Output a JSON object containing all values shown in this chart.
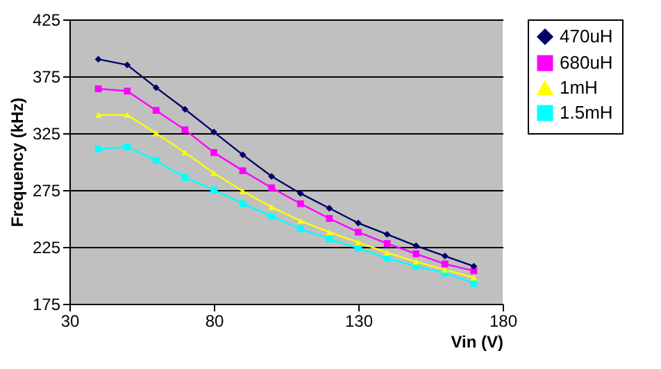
{
  "chart_data": {
    "type": "line",
    "xlabel": "Vin (V)",
    "ylabel": "Frequency (kHz)",
    "x": [
      40,
      50,
      60,
      70,
      80,
      90,
      100,
      110,
      120,
      130,
      140,
      150,
      160,
      170
    ],
    "series": [
      {
        "name": "470uH",
        "color": "#000066",
        "marker": "diamond",
        "values": [
          390,
          385,
          365,
          346,
          326,
          306,
          287,
          272,
          259,
          246,
          236,
          226,
          217,
          208
        ]
      },
      {
        "name": "680uH",
        "color": "#ff00ff",
        "marker": "square",
        "values": [
          364,
          362,
          345,
          328,
          308,
          292,
          277,
          263,
          250,
          238,
          228,
          219,
          210,
          204
        ]
      },
      {
        "name": "1mH",
        "color": "#ffff00",
        "marker": "triangle",
        "values": [
          341,
          341,
          325,
          308,
          290,
          274,
          260,
          248,
          238,
          229,
          220,
          212,
          205,
          198
        ]
      },
      {
        "name": "1.5mH",
        "color": "#00ffff",
        "marker": "square",
        "values": [
          311,
          313,
          301,
          286,
          275,
          263,
          252,
          241,
          232,
          224,
          215,
          208,
          202,
          193
        ]
      }
    ],
    "xlim": [
      30,
      180
    ],
    "xticks": [
      30,
      80,
      130,
      180
    ],
    "ylim": [
      175,
      425
    ],
    "yticks": [
      175,
      225,
      275,
      325,
      375,
      425
    ],
    "grid": "y",
    "legend": "right",
    "line_style": "solid"
  }
}
